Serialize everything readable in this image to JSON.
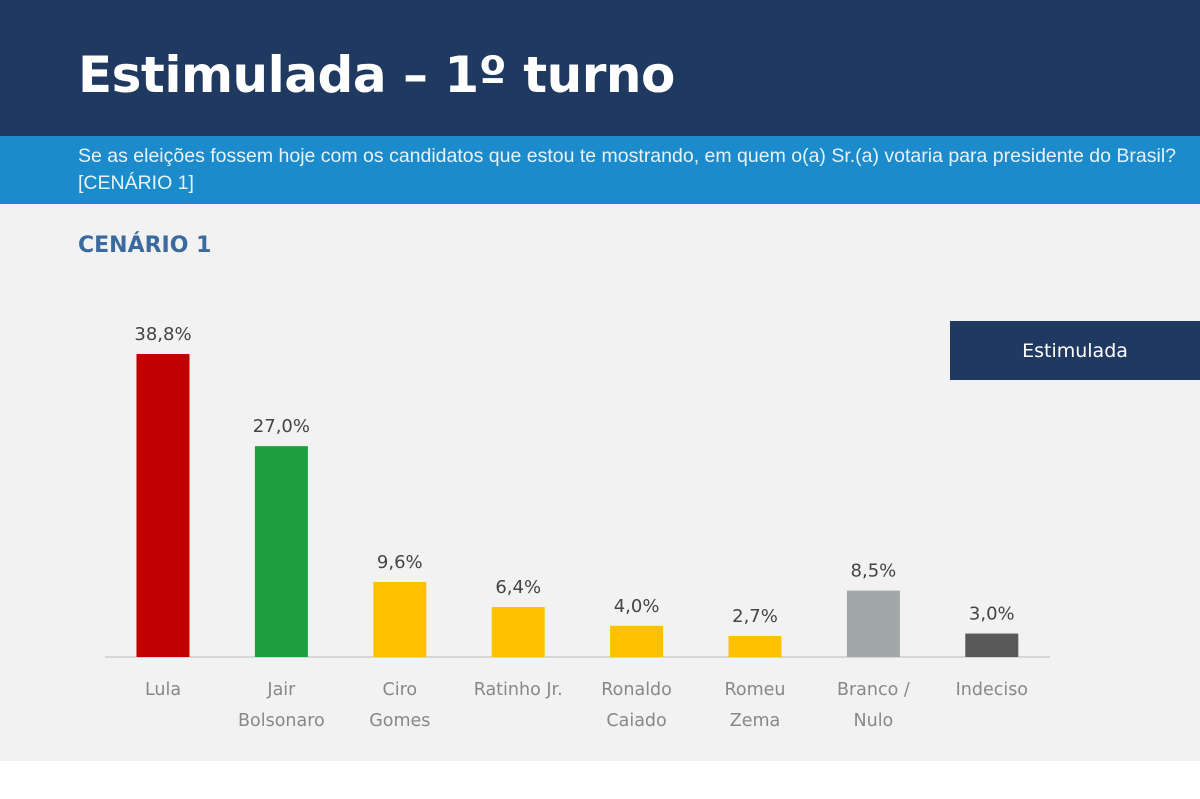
{
  "header": {
    "title": "Estimulada – 1º turno"
  },
  "question": "Se as eleições fossem hoje com os candidatos que estou te mostrando, em quem o(a) Sr.(a) votaria para presidente do Brasil? [CENÁRIO 1]",
  "scenario_label": "CENÁRIO 1",
  "colors": {
    "header": "#1f3961",
    "band": "#1b8bcb",
    "panel": "#f2f2f2"
  },
  "chart_data": {
    "type": "bar",
    "title": "",
    "xlabel": "",
    "ylabel": "",
    "ylim": [
      0,
      40
    ],
    "grid": false,
    "legend": {
      "entries": [
        "Estimulada"
      ],
      "placement": "top-right"
    },
    "categories": [
      [
        "Lula"
      ],
      [
        "Jair",
        "Bolsonaro"
      ],
      [
        "Ciro",
        "Gomes"
      ],
      [
        "Ratinho Jr."
      ],
      [
        "Ronaldo",
        "Caiado"
      ],
      [
        "Romeu",
        "Zema"
      ],
      [
        "Branco /",
        "Nulo"
      ],
      [
        "Indeciso"
      ]
    ],
    "values": [
      38.8,
      27.0,
      9.6,
      6.4,
      4.0,
      2.7,
      8.5,
      3.0
    ],
    "labels": [
      "38,8%",
      "27,0%",
      "9,6%",
      "6,4%",
      "4,0%",
      "2,7%",
      "8,5%",
      "3,0%"
    ],
    "bar_colors": [
      "#c00000",
      "#1e9e3e",
      "#ffc000",
      "#ffc000",
      "#ffc000",
      "#ffc000",
      "#a1a8a8",
      "#595959"
    ]
  }
}
